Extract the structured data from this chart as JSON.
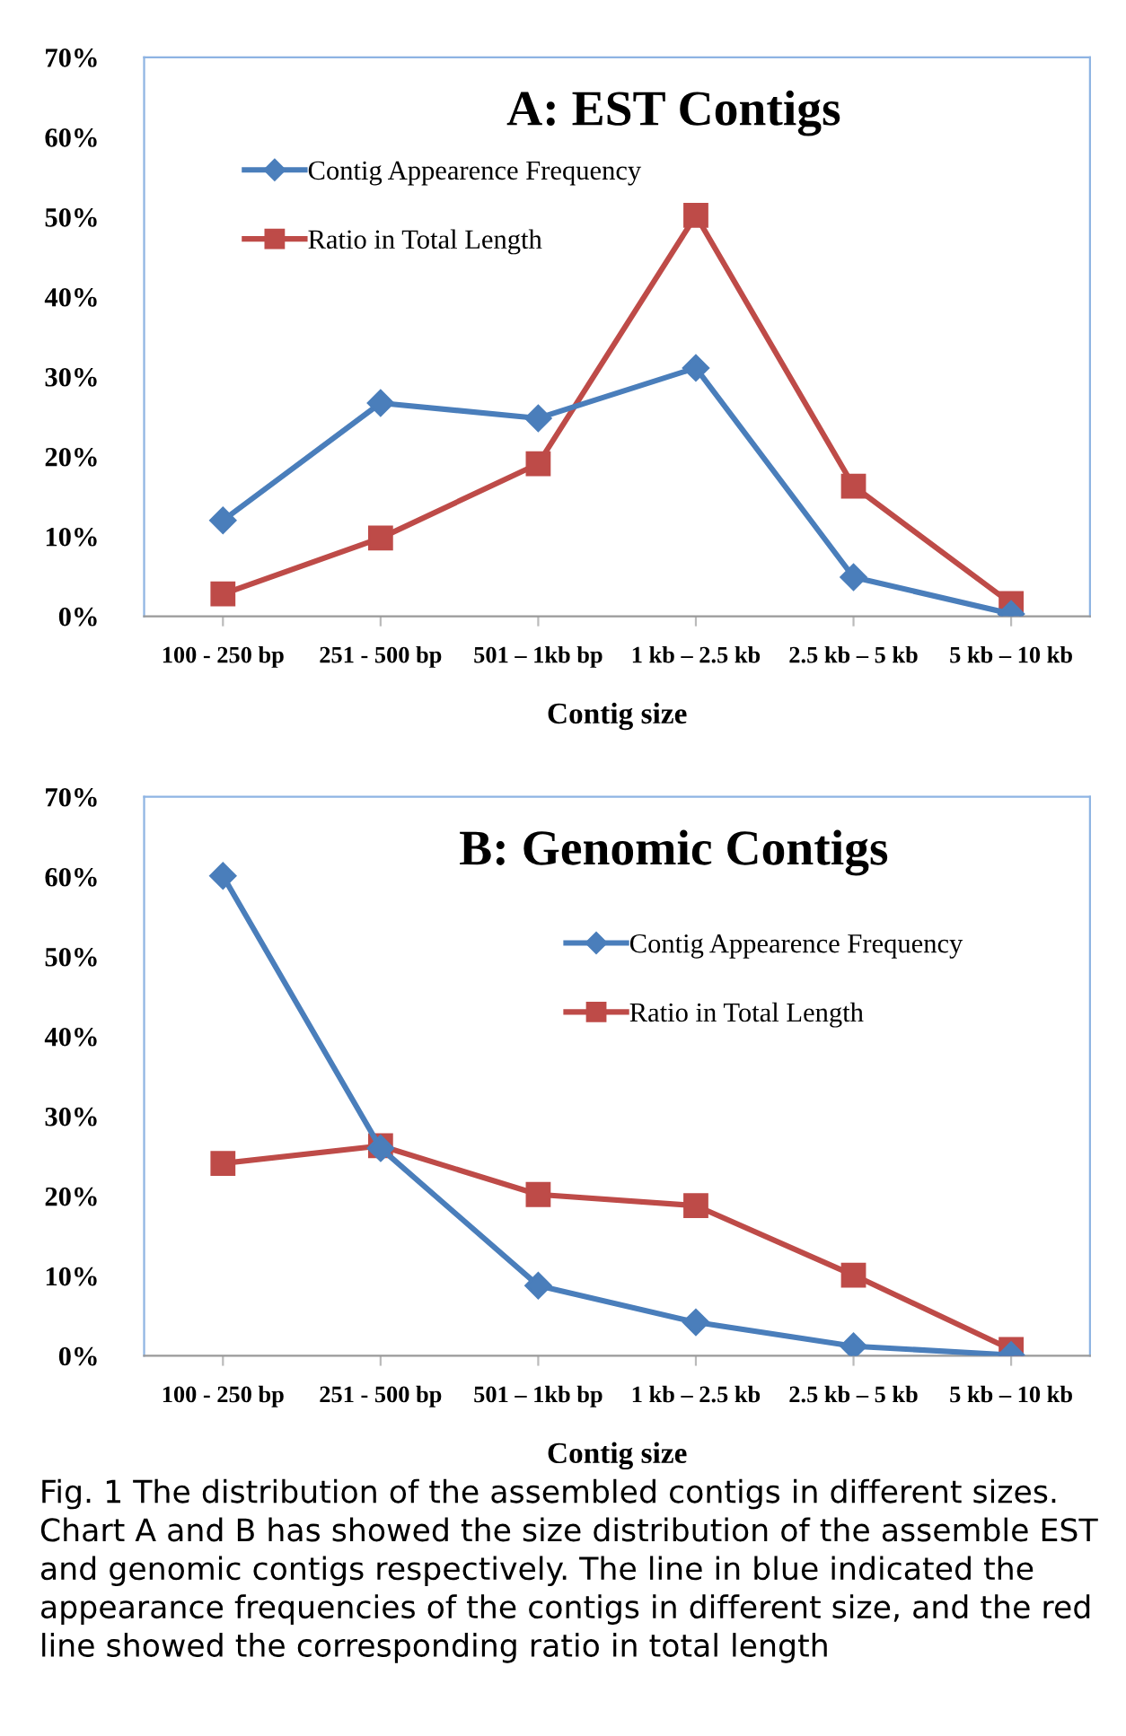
{
  "chart_data": [
    {
      "type": "line",
      "title": "A: EST Contigs",
      "xlabel": "Contig size",
      "categories": [
        "100 - 250 bp",
        "251 - 500 bp",
        "501 – 1kb bp",
        "1 kb – 2.5 kb",
        "2.5 kb – 5 kb",
        "5 kb – 10 kb"
      ],
      "series": [
        {
          "name": "Contig Appearence Frequency",
          "color": "#4a7ebb",
          "marker": "diamond",
          "values": [
            12.0,
            26.7,
            24.8,
            31.1,
            4.9,
            0.3
          ]
        },
        {
          "name": "Ratio in Total Length",
          "color": "#be4b48",
          "marker": "square",
          "values": [
            2.8,
            9.8,
            19.1,
            50.2,
            16.3,
            1.6
          ]
        }
      ],
      "ylim": [
        0,
        70
      ],
      "yticks": [
        {
          "value": 0,
          "label": "0%"
        },
        {
          "value": 10,
          "label": "10%"
        },
        {
          "value": 20,
          "label": "20%"
        },
        {
          "value": 30,
          "label": "30%"
        },
        {
          "value": 40,
          "label": "40%"
        },
        {
          "value": 50,
          "label": "50%"
        },
        {
          "value": 60,
          "label": "60%"
        },
        {
          "value": 70,
          "label": "70%"
        }
      ],
      "grid": false,
      "legend": "top left",
      "line_style": "solid"
    },
    {
      "type": "line",
      "title": "B: Genomic Contigs",
      "xlabel": "Contig size",
      "categories": [
        "100 - 250 bp",
        "251 - 500 bp",
        "501 – 1kb bp",
        "1 kb – 2.5 kb",
        "2.5 kb – 5 kb",
        "5 kb – 10 kb"
      ],
      "series": [
        {
          "name": "Contig Appearence Frequency",
          "color": "#4a7ebb",
          "marker": "diamond",
          "values": [
            60.1,
            26.0,
            8.8,
            4.2,
            1.2,
            0.1
          ]
        },
        {
          "name": "Ratio in Total Length",
          "color": "#be4b48",
          "marker": "square",
          "values": [
            24.1,
            26.3,
            20.2,
            18.8,
            10.1,
            0.8
          ]
        }
      ],
      "ylim": [
        0,
        70
      ],
      "yticks": [
        {
          "value": 0,
          "label": "0%"
        },
        {
          "value": 10,
          "label": "10%"
        },
        {
          "value": 20,
          "label": "20%"
        },
        {
          "value": 30,
          "label": "30%"
        },
        {
          "value": 40,
          "label": "40%"
        },
        {
          "value": 50,
          "label": "50%"
        },
        {
          "value": 60,
          "label": "60%"
        },
        {
          "value": 70,
          "label": "70%"
        }
      ],
      "grid": false,
      "legend": "right",
      "line_style": "solid",
      "annotations": [
        "Fig. 1 The distribution of the assembled contigs in different sizes. Chart A and B has showed the size distribution of the assemble EST and genomic contigs respectively. The line in blue indicated the appearance frequencies of the contigs in different size, and the red line showed the corresponding ratio in total length"
      ]
    }
  ]
}
